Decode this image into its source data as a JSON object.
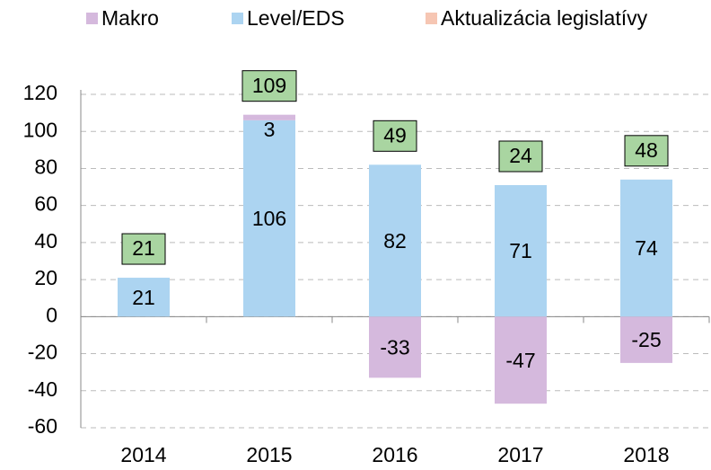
{
  "chart_data": {
    "type": "bar",
    "stacked": true,
    "categories": [
      "2014",
      "2015",
      "2016",
      "2017",
      "2018"
    ],
    "series": [
      {
        "name": "Makro",
        "color": "#d5b9dd",
        "values": [
          null,
          3,
          -33,
          -47,
          -25
        ]
      },
      {
        "name": "Level/EDS",
        "color": "#acd4f1",
        "values": [
          21,
          106,
          82,
          71,
          74
        ]
      },
      {
        "name": "Aktualizácia legislatívy",
        "color": "#f6c6b3",
        "values": [
          null,
          null,
          null,
          null,
          null
        ]
      }
    ],
    "totals": [
      21,
      109,
      49,
      24,
      48
    ],
    "totals_color": "#a9d5a1",
    "ylim": [
      -60,
      120
    ],
    "yticks": [
      -60,
      -40,
      -20,
      0,
      20,
      40,
      60,
      80,
      100,
      120
    ],
    "grid": true
  }
}
